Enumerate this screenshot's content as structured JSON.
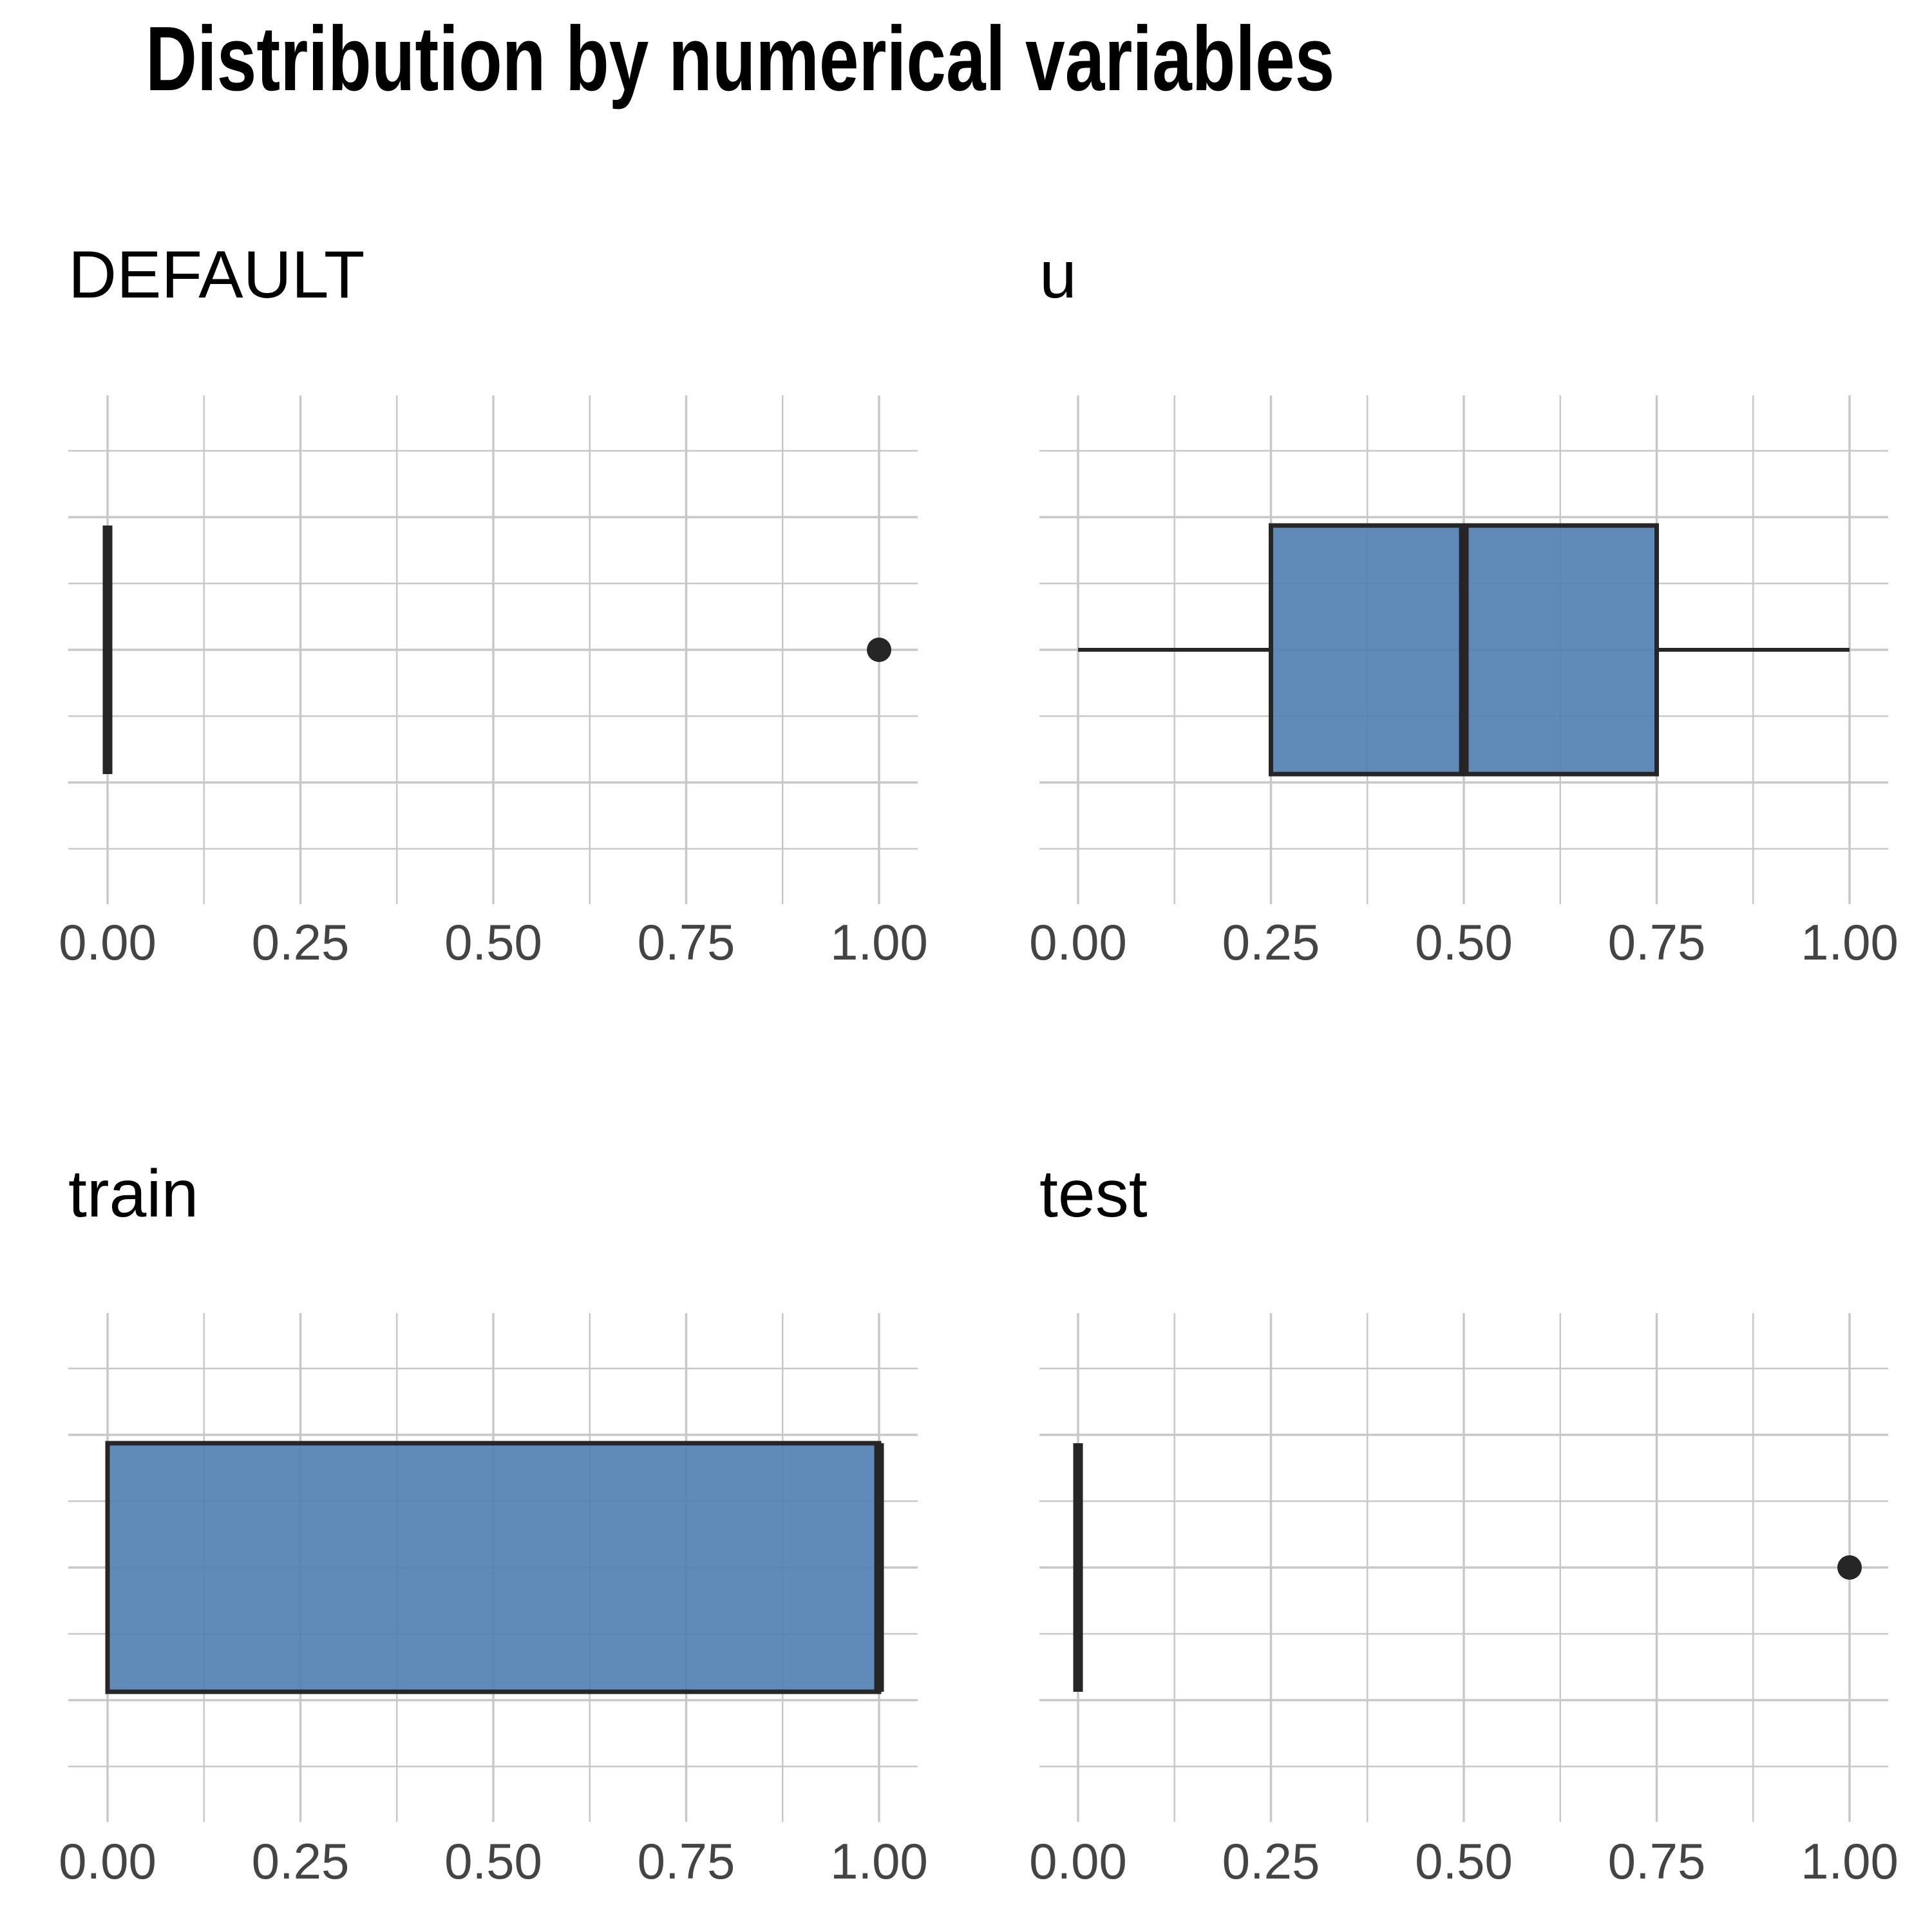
{
  "title": "Distribution by numerical variables",
  "colors": {
    "box_fill": "#4f7eb1",
    "box_stroke": "#262626",
    "grid": "#c8c8c8",
    "tick_text": "#444444"
  },
  "chart_data": [
    {
      "type": "boxplot",
      "title": "DEFAULT",
      "xlabel": "",
      "ylabel": "",
      "xlim": [
        0,
        1
      ],
      "ticks": [
        "0.00",
        "0.25",
        "0.50",
        "0.75",
        "1.00"
      ],
      "grid": true,
      "stats": {
        "whisker_low": 0,
        "q1": 0,
        "median": 0,
        "q3": 0,
        "whisker_high": 0
      },
      "outliers": [
        1
      ]
    },
    {
      "type": "boxplot",
      "title": "u",
      "xlabel": "",
      "ylabel": "",
      "xlim": [
        0,
        1
      ],
      "ticks": [
        "0.00",
        "0.25",
        "0.50",
        "0.75",
        "1.00"
      ],
      "grid": true,
      "stats": {
        "whisker_low": 0,
        "q1": 0.25,
        "median": 0.5,
        "q3": 0.75,
        "whisker_high": 1
      },
      "outliers": []
    },
    {
      "type": "boxplot",
      "title": "train",
      "xlabel": "",
      "ylabel": "",
      "xlim": [
        0,
        1
      ],
      "ticks": [
        "0.00",
        "0.25",
        "0.50",
        "0.75",
        "1.00"
      ],
      "grid": true,
      "stats": {
        "whisker_low": 0,
        "q1": 0,
        "median": 1,
        "q3": 1,
        "whisker_high": 1
      },
      "outliers": []
    },
    {
      "type": "boxplot",
      "title": "test",
      "xlabel": "",
      "ylabel": "",
      "xlim": [
        0,
        1
      ],
      "ticks": [
        "0.00",
        "0.25",
        "0.50",
        "0.75",
        "1.00"
      ],
      "grid": true,
      "stats": {
        "whisker_low": 0,
        "q1": 0,
        "median": 0,
        "q3": 0,
        "whisker_high": 0
      },
      "outliers": [
        1
      ]
    }
  ]
}
